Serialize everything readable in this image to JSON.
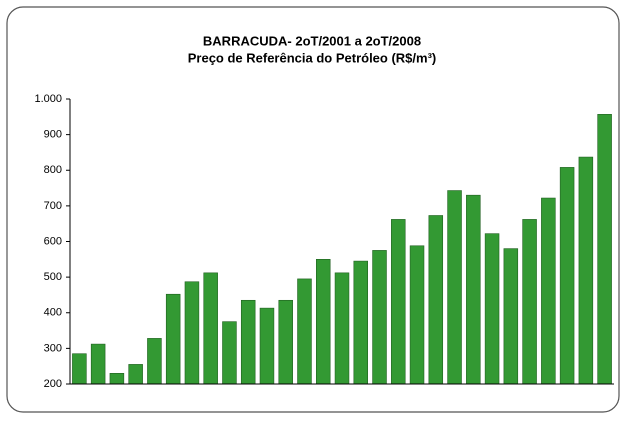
{
  "chart_data": {
    "type": "bar",
    "title": "BARRACUDA- 2oT/2001 a 2oT/2008",
    "subtitle": "Preço de Referência do Petróleo (R$/m³)",
    "categories": [
      null,
      null,
      null,
      null,
      null,
      null,
      null,
      null,
      null,
      null,
      null,
      null,
      null,
      null,
      null,
      null,
      null,
      null,
      null,
      null,
      null,
      null,
      null,
      null,
      null,
      null,
      null,
      null,
      null
    ],
    "values": [
      285,
      312,
      230,
      255,
      328,
      452,
      487,
      512,
      375,
      435,
      413,
      435,
      495,
      550,
      512,
      545,
      575,
      662,
      588,
      673,
      743,
      730,
      622,
      580,
      662,
      722,
      808,
      837,
      957
    ],
    "color": "#339933",
    "ylim": [
      200,
      1000
    ],
    "yticks": [
      200,
      300,
      400,
      500,
      600,
      700,
      800,
      900,
      {
        "value": 1000,
        "label": "1.000"
      }
    ],
    "grid": false
  }
}
